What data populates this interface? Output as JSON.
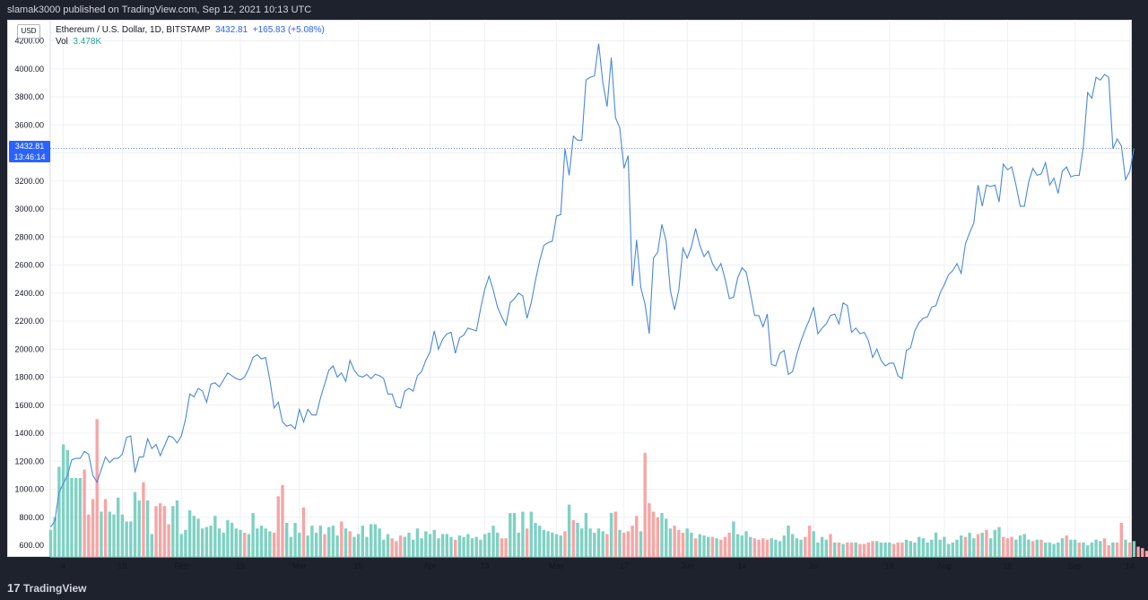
{
  "header": {
    "published_text": "slamak3000 published on TradingView.com, Sep 12, 2021 10:13 UTC"
  },
  "footer": {
    "brand": "TradingView",
    "logo_glyph": "17"
  },
  "currency_button": "USD",
  "legend": {
    "symbol": "Ethereum / U.S. Dollar, 1D, BITSTAMP",
    "price": "3432.81",
    "change": "+165.83 (+5.08%)",
    "vol_label": "Vol",
    "vol_value": "3.478K"
  },
  "price_label": {
    "price": "3432.81",
    "countdown": "13:46:14"
  },
  "colors": {
    "line": "#4a89dc",
    "vol_up": "#7fd1c3",
    "vol_down": "#f7a5a5",
    "accent": "#2962ff"
  },
  "chart_data": {
    "type": "line",
    "title": "",
    "xlabel": "",
    "ylabel": "",
    "ylim": [
      540,
      4250
    ],
    "grid": true,
    "y_ticks": [
      "600.00",
      "800.00",
      "1000.00",
      "1200.00",
      "1400.00",
      "1600.00",
      "1800.00",
      "2000.00",
      "2200.00",
      "2400.00",
      "2600.00",
      "2800.00",
      "3000.00",
      "3200.00",
      "3400.00",
      "3600.00",
      "3800.00",
      "4000.00",
      "4200.00"
    ],
    "x_ticks": [
      {
        "label": "4",
        "day": 3
      },
      {
        "label": "18",
        "day": 17
      },
      {
        "label": "Feb",
        "day": 31
      },
      {
        "label": "15",
        "day": 45
      },
      {
        "label": "Mar",
        "day": 59
      },
      {
        "label": "15",
        "day": 73
      },
      {
        "label": "Apr",
        "day": 90
      },
      {
        "label": "14",
        "day": 103
      },
      {
        "label": "May",
        "day": 120
      },
      {
        "label": "17",
        "day": 136
      },
      {
        "label": "Jun",
        "day": 151
      },
      {
        "label": "14",
        "day": 164
      },
      {
        "label": "Jul",
        "day": 181
      },
      {
        "label": "19",
        "day": 199
      },
      {
        "label": "Aug",
        "day": 212
      },
      {
        "label": "16",
        "day": 227
      },
      {
        "label": "Sep",
        "day": 243
      },
      {
        "label": "14",
        "day": 256
      }
    ],
    "x_start": "2021-01-01",
    "series": [
      {
        "values": [
          730,
          775,
          980,
          1040,
          1100,
          1210,
          1220,
          1220,
          1270,
          1250,
          1100,
          1050,
          1140,
          1230,
          1190,
          1220,
          1220,
          1250,
          1370,
          1380,
          1120,
          1230,
          1230,
          1360,
          1290,
          1320,
          1240,
          1310,
          1380,
          1370,
          1330,
          1380,
          1500,
          1680,
          1660,
          1720,
          1700,
          1620,
          1750,
          1760,
          1730,
          1780,
          1830,
          1810,
          1790,
          1780,
          1800,
          1860,
          1940,
          1960,
          1930,
          1940,
          1780,
          1580,
          1620,
          1480,
          1450,
          1460,
          1430,
          1570,
          1480,
          1570,
          1530,
          1530,
          1650,
          1750,
          1850,
          1880,
          1800,
          1830,
          1770,
          1920,
          1850,
          1810,
          1800,
          1820,
          1790,
          1820,
          1810,
          1790,
          1680,
          1680,
          1590,
          1580,
          1700,
          1720,
          1700,
          1810,
          1840,
          1920,
          1980,
          2130,
          2000,
          2070,
          2110,
          2120,
          1970,
          2080,
          2100,
          2150,
          2140,
          2130,
          2290,
          2430,
          2520,
          2420,
          2300,
          2230,
          2170,
          2330,
          2360,
          2400,
          2380,
          2220,
          2330,
          2490,
          2630,
          2740,
          2760,
          2770,
          2950,
          2960,
          3430,
          3240,
          3520,
          3490,
          3490,
          3920,
          3940,
          3950,
          4180,
          3900,
          3730,
          4080,
          3650,
          3580,
          3290,
          3380,
          2450,
          2780,
          2440,
          2320,
          2110,
          2650,
          2690,
          2890,
          2770,
          2420,
          2280,
          2420,
          2720,
          2650,
          2730,
          2860,
          2740,
          2660,
          2700,
          2610,
          2560,
          2610,
          2500,
          2360,
          2370,
          2510,
          2580,
          2550,
          2400,
          2240,
          2240,
          2160,
          2250,
          1890,
          1880,
          1970,
          1990,
          1820,
          1840,
          1960,
          2060,
          2140,
          2210,
          2300,
          2110,
          2150,
          2180,
          2240,
          2250,
          2180,
          2330,
          2310,
          2120,
          2150,
          2110,
          2120,
          2060,
          1940,
          2000,
          1920,
          1880,
          1900,
          1900,
          1810,
          1790,
          1990,
          2010,
          2130,
          2190,
          2220,
          2230,
          2300,
          2310,
          2400,
          2460,
          2530,
          2560,
          2610,
          2540,
          2750,
          2830,
          2900,
          3170,
          3020,
          3170,
          3160,
          3170,
          3050,
          3320,
          3280,
          3300,
          3170,
          3020,
          3020,
          3190,
          3290,
          3240,
          3250,
          3330,
          3170,
          3220,
          3110,
          3270,
          3300,
          3230,
          3240,
          3240,
          3450,
          3830,
          3790,
          3940,
          3920,
          3960,
          3940,
          3430,
          3500,
          3450,
          3210,
          3270,
          3432.81
        ]
      }
    ],
    "volume_values": [
      710,
      800,
      1160,
      1320,
      1280,
      1080,
      1080,
      1080,
      1140,
      820,
      930,
      1500,
      840,
      930,
      840,
      820,
      940,
      820,
      770,
      770,
      980,
      920,
      1050,
      920,
      680,
      880,
      900,
      880,
      750,
      880,
      920,
      680,
      710,
      850,
      810,
      790,
      720,
      730,
      740,
      810,
      720,
      690,
      780,
      760,
      720,
      710,
      690,
      680,
      830,
      720,
      740,
      720,
      700,
      690,
      950,
      1030,
      760,
      660,
      760,
      690,
      870,
      670,
      740,
      690,
      740,
      680,
      730,
      740,
      670,
      770,
      720,
      700,
      660,
      680,
      740,
      660,
      750,
      750,
      720,
      640,
      680,
      650,
      630,
      670,
      660,
      690,
      640,
      720,
      650,
      700,
      680,
      710,
      650,
      680,
      680,
      660,
      640,
      670,
      660,
      680,
      650,
      660,
      640,
      680,
      690,
      740,
      690,
      650,
      650,
      830,
      830,
      690,
      840,
      720,
      840,
      760,
      740,
      710,
      700,
      690,
      680,
      670,
      700,
      890,
      780,
      760,
      720,
      830,
      720,
      690,
      720,
      700,
      680,
      830,
      840,
      710,
      690,
      700,
      740,
      810,
      700,
      1260,
      900,
      840,
      800,
      830,
      790,
      720,
      740,
      710,
      690,
      720,
      690,
      650,
      680,
      670,
      660,
      660,
      650,
      640,
      660,
      690,
      770,
      680,
      670,
      700,
      660,
      650,
      640,
      650,
      640,
      650,
      640,
      630,
      670,
      740,
      680,
      650,
      640,
      660,
      740,
      700,
      620,
      660,
      640,
      680,
      620,
      620,
      610,
      620,
      620,
      620,
      610,
      610,
      620,
      630,
      630,
      620,
      620,
      620,
      610,
      620,
      620,
      640,
      630,
      620,
      660,
      650,
      620,
      640,
      690,
      640,
      660,
      610,
      620,
      640,
      670,
      660,
      690,
      650,
      680,
      690,
      710,
      650,
      710,
      730,
      660,
      650,
      660,
      640,
      670,
      680,
      640,
      630,
      640,
      640,
      620,
      620,
      610,
      620,
      650,
      670,
      640,
      640,
      620,
      620,
      600,
      620,
      640,
      630,
      650,
      600,
      620,
      620,
      760,
      640,
      620,
      630,
      590,
      580,
      560,
      550,
      540
    ],
    "volume_up": [
      1,
      1,
      1,
      1,
      1,
      1,
      1,
      1,
      0,
      0,
      0,
      0,
      1,
      0,
      1,
      1,
      1,
      1,
      1,
      1,
      1,
      1,
      0,
      1,
      1,
      0,
      0,
      0,
      0,
      1,
      1,
      1,
      1,
      1,
      1,
      1,
      1,
      1,
      1,
      1,
      1,
      1,
      1,
      1,
      1,
      1,
      0,
      1,
      1,
      1,
      1,
      1,
      1,
      0,
      0,
      0,
      1,
      1,
      1,
      1,
      0,
      1,
      1,
      1,
      1,
      0,
      1,
      1,
      1,
      0,
      1,
      0,
      1,
      1,
      1,
      1,
      1,
      1,
      1,
      1,
      1,
      0,
      0,
      0,
      1,
      1,
      1,
      1,
      1,
      1,
      1,
      1,
      1,
      1,
      1,
      1,
      0,
      1,
      1,
      1,
      1,
      1,
      1,
      1,
      1,
      1,
      1,
      0,
      0,
      1,
      1,
      1,
      1,
      0,
      1,
      1,
      1,
      1,
      1,
      1,
      1,
      1,
      0,
      1,
      0,
      1,
      1,
      1,
      1,
      1,
      1,
      1,
      0,
      1,
      0,
      1,
      0,
      0,
      0,
      0,
      1,
      0,
      0,
      0,
      0,
      1,
      1,
      1,
      0,
      0,
      0,
      1,
      1,
      0,
      1,
      1,
      1,
      0,
      1,
      0,
      0,
      0,
      1,
      1,
      1,
      1,
      1,
      0,
      0,
      0,
      0,
      1,
      1,
      1,
      1,
      1,
      1,
      1,
      1,
      0,
      0,
      1,
      1,
      1,
      1,
      0,
      1,
      0,
      1,
      0,
      0,
      1,
      0,
      0,
      0,
      0,
      1,
      1,
      1,
      1,
      0,
      0,
      0,
      1,
      1,
      1,
      1,
      1,
      1,
      1,
      1,
      1,
      1,
      1,
      1,
      1,
      1,
      0,
      1,
      1,
      0,
      1,
      0,
      1,
      1,
      1,
      0,
      0,
      0,
      1,
      1,
      1,
      1,
      0,
      1,
      0,
      1,
      1,
      1,
      1,
      1,
      0,
      1,
      1,
      0,
      1,
      1,
      1,
      1,
      1,
      0,
      0,
      1,
      0,
      0,
      1,
      0,
      1
    ]
  }
}
